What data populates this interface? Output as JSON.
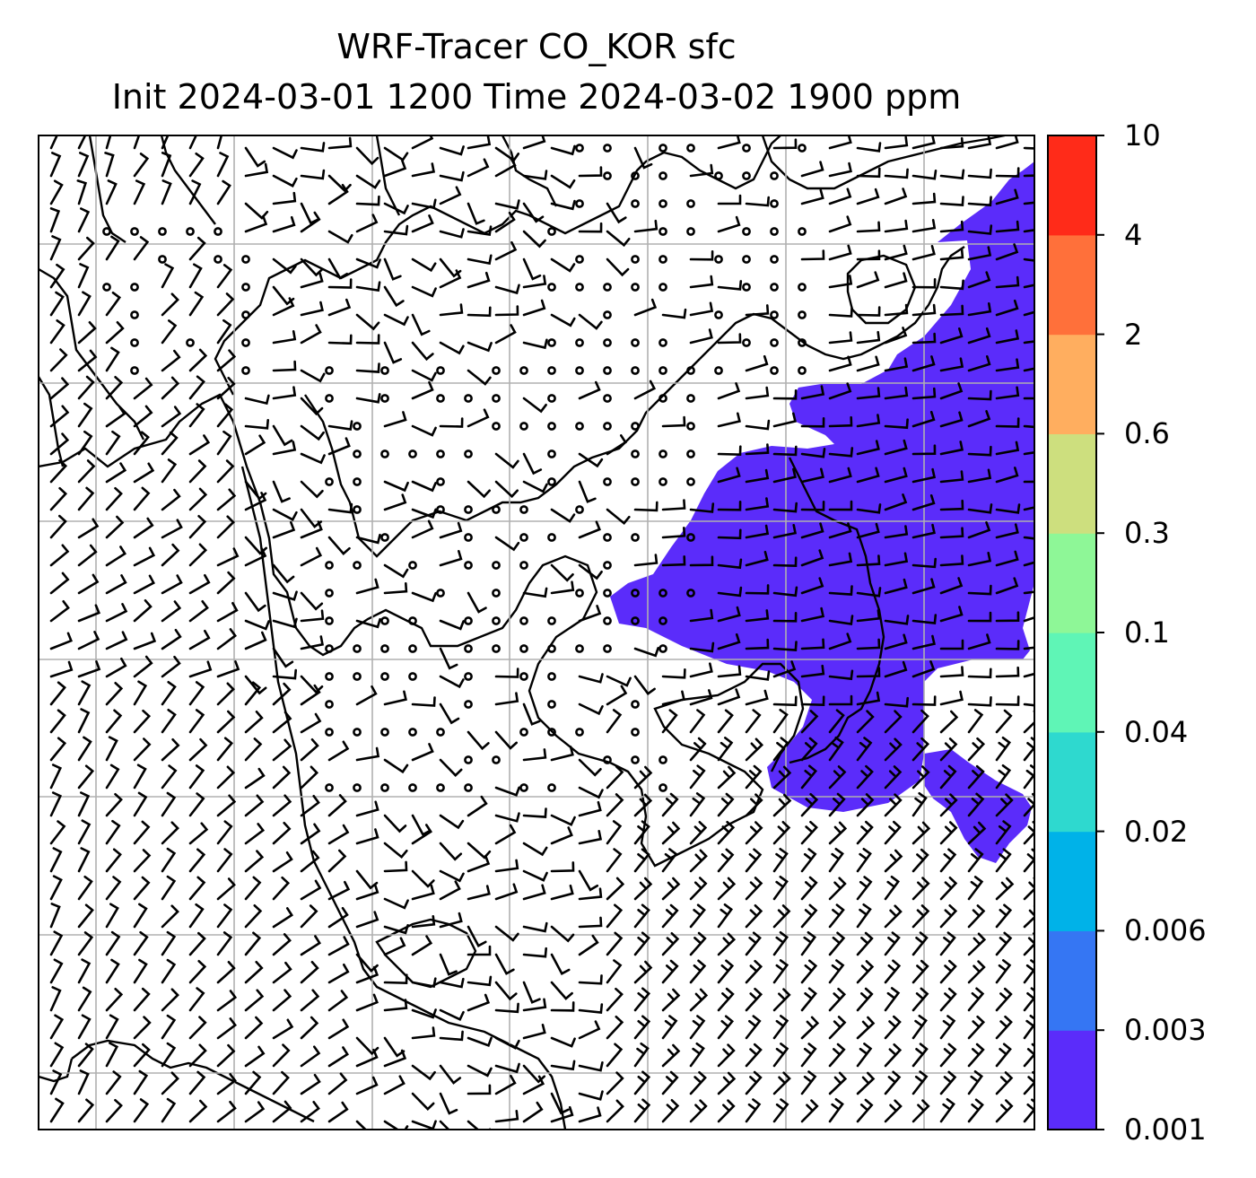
{
  "title": {
    "line1": "WRF-Tracer CO_KOR sfc",
    "line2": "Init 2024-03-01 1200 Time 2024-03-02 1900 ppm"
  },
  "colorbar": {
    "levels": [
      {
        "label": "0.001",
        "color": "#5b2cfa"
      },
      {
        "label": "0.003",
        "color": "#3576f3"
      },
      {
        "label": "0.006",
        "color": "#00b2e8"
      },
      {
        "label": "0.02",
        "color": "#2ed9cf"
      },
      {
        "label": "0.04",
        "color": "#5ff5b6"
      },
      {
        "label": "0.1",
        "color": "#8ef797"
      },
      {
        "label": "0.3",
        "color": "#cddf7e"
      },
      {
        "label": "0.6",
        "color": "#ffae5f"
      },
      {
        "label": "2",
        "color": "#ff703a"
      },
      {
        "label": "4",
        "color": "#ff2b19"
      },
      {
        "label": "10",
        "color": null
      }
    ]
  },
  "map": {
    "tracer_fill_color": "#5b2cfa",
    "tracer_level": "0.001",
    "gridlines": true,
    "wind_barbs": true
  }
}
